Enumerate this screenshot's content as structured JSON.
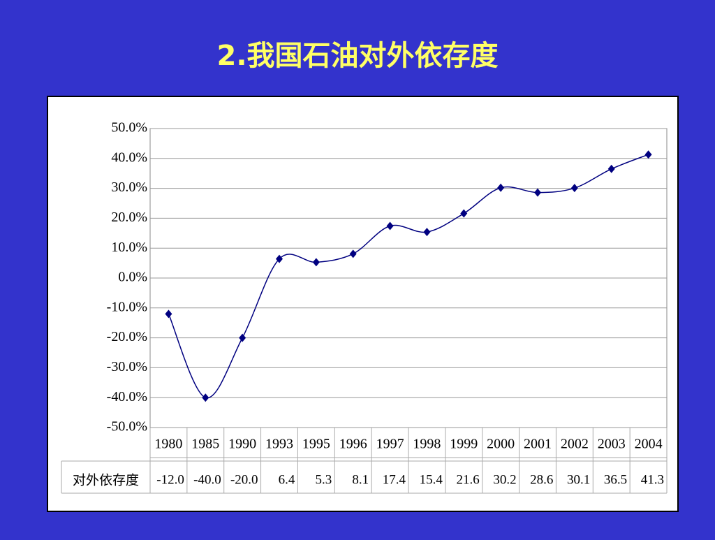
{
  "chart_data": {
    "type": "line",
    "title": "2.我国石油对外依存度",
    "categories": [
      "1980",
      "1985",
      "1990",
      "1993",
      "1995",
      "1996",
      "1997",
      "1998",
      "1999",
      "2000",
      "2001",
      "2002",
      "2003",
      "2004"
    ],
    "series": [
      {
        "name": "对外依存度",
        "color": "#000080",
        "values": [
          -12.0,
          -40.0,
          -20.0,
          6.4,
          5.3,
          8.1,
          17.4,
          15.4,
          21.6,
          30.2,
          28.6,
          30.1,
          36.5,
          41.3
        ],
        "value_labels": [
          "-12.0",
          "-40.0",
          "-20.0",
          "6.4",
          "5.3",
          "8.1",
          "17.4",
          "15.4",
          "21.6",
          "30.2",
          "28.6",
          "30.1",
          "36.5",
          "41.3"
        ]
      }
    ],
    "ylim": [
      -50,
      50
    ],
    "yticks": [
      {
        "value": -50,
        "label": "-50.0%"
      },
      {
        "value": -40,
        "label": "-40.0%"
      },
      {
        "value": -30,
        "label": "-30.0%"
      },
      {
        "value": -20,
        "label": "-20.0%"
      },
      {
        "value": -10,
        "label": "-10.0%"
      },
      {
        "value": 0,
        "label": "0.0%"
      },
      {
        "value": 10,
        "label": "10.0%"
      },
      {
        "value": 20,
        "label": "20.0%"
      },
      {
        "value": 30,
        "label": "30.0%"
      },
      {
        "value": 40,
        "label": "40.0%"
      },
      {
        "value": 50,
        "label": "50.0%"
      }
    ],
    "grid": true
  }
}
